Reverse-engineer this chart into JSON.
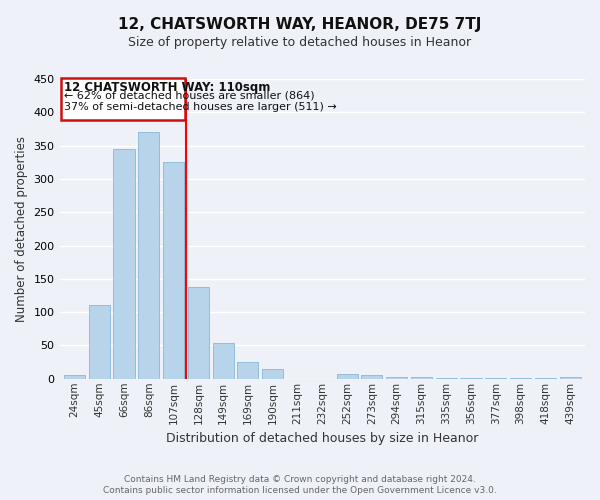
{
  "title": "12, CHATSWORTH WAY, HEANOR, DE75 7TJ",
  "subtitle": "Size of property relative to detached houses in Heanor",
  "xlabel": "Distribution of detached houses by size in Heanor",
  "ylabel": "Number of detached properties",
  "bar_color": "#b8d4ea",
  "bar_edge_color": "#88b8d8",
  "categories": [
    "24sqm",
    "45sqm",
    "66sqm",
    "86sqm",
    "107sqm",
    "128sqm",
    "149sqm",
    "169sqm",
    "190sqm",
    "211sqm",
    "232sqm",
    "252sqm",
    "273sqm",
    "294sqm",
    "315sqm",
    "335sqm",
    "356sqm",
    "377sqm",
    "398sqm",
    "418sqm",
    "439sqm"
  ],
  "values": [
    5,
    110,
    345,
    370,
    325,
    138,
    53,
    25,
    15,
    0,
    0,
    7,
    5,
    2,
    2,
    1,
    1,
    1,
    1,
    1,
    2
  ],
  "red_line_index": 4,
  "ylim": [
    0,
    450
  ],
  "yticks": [
    0,
    50,
    100,
    150,
    200,
    250,
    300,
    350,
    400,
    450
  ],
  "annotation_line1": "12 CHATSWORTH WAY: 110sqm",
  "annotation_line2": "← 62% of detached houses are smaller (864)",
  "annotation_line3": "37% of semi-detached houses are larger (511) →",
  "footer1": "Contains HM Land Registry data © Crown copyright and database right 2024.",
  "footer2": "Contains public sector information licensed under the Open Government Licence v3.0.",
  "background_color": "#eef2f8",
  "grid_color": "#ffffff",
  "title_fontsize": 11,
  "subtitle_fontsize": 9,
  "tick_fontsize": 7.5,
  "ylabel_fontsize": 8.5,
  "xlabel_fontsize": 9,
  "footer_fontsize": 6.5
}
